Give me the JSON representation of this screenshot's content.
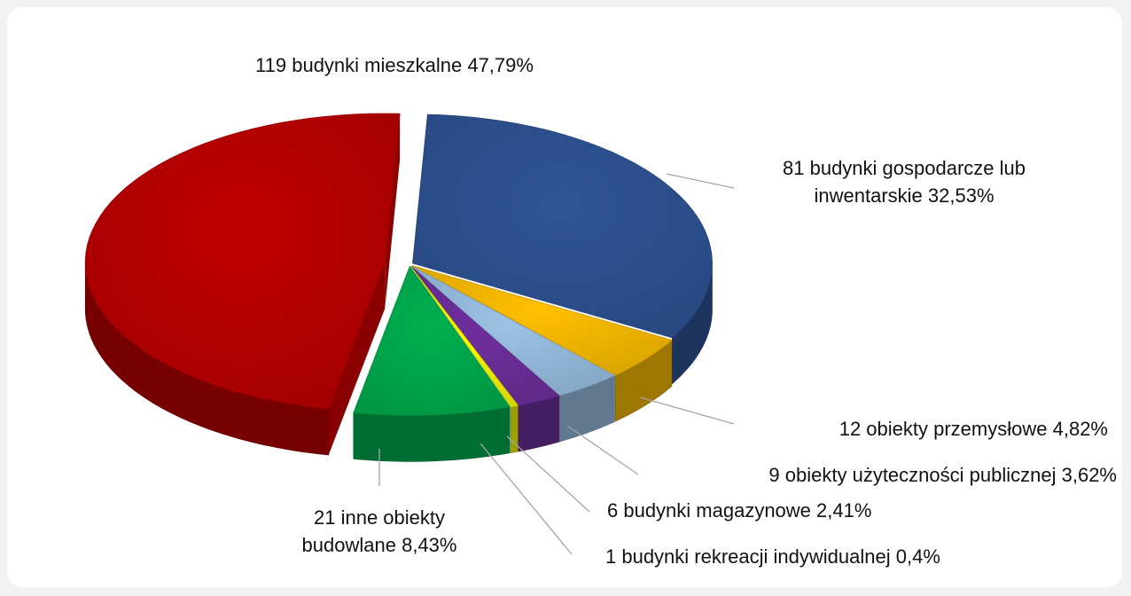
{
  "chart_data": {
    "type": "pie",
    "categories": [
      "119 budynki mieszkalne",
      "81 budynki gospodarcze lub inwentarskie",
      "12 obiekty przemysłowe",
      "9 obiekty użyteczności publicznej",
      "6 budynki magazynowe",
      "1 budynki rekreacji indywidualnej",
      "21 inne obiekty budowlane"
    ],
    "values": [
      47.79,
      32.53,
      4.82,
      3.62,
      2.41,
      0.4,
      8.43
    ],
    "value_labels": [
      "47,79%",
      "32,53%",
      "4,82%",
      "3,62%",
      "2,41%",
      "0,4%",
      "8,43%"
    ],
    "colors": [
      "#c00000",
      "#2f5597",
      "#ffc000",
      "#9dc3e6",
      "#7030a0",
      "#ffff00",
      "#00b050"
    ]
  }
}
